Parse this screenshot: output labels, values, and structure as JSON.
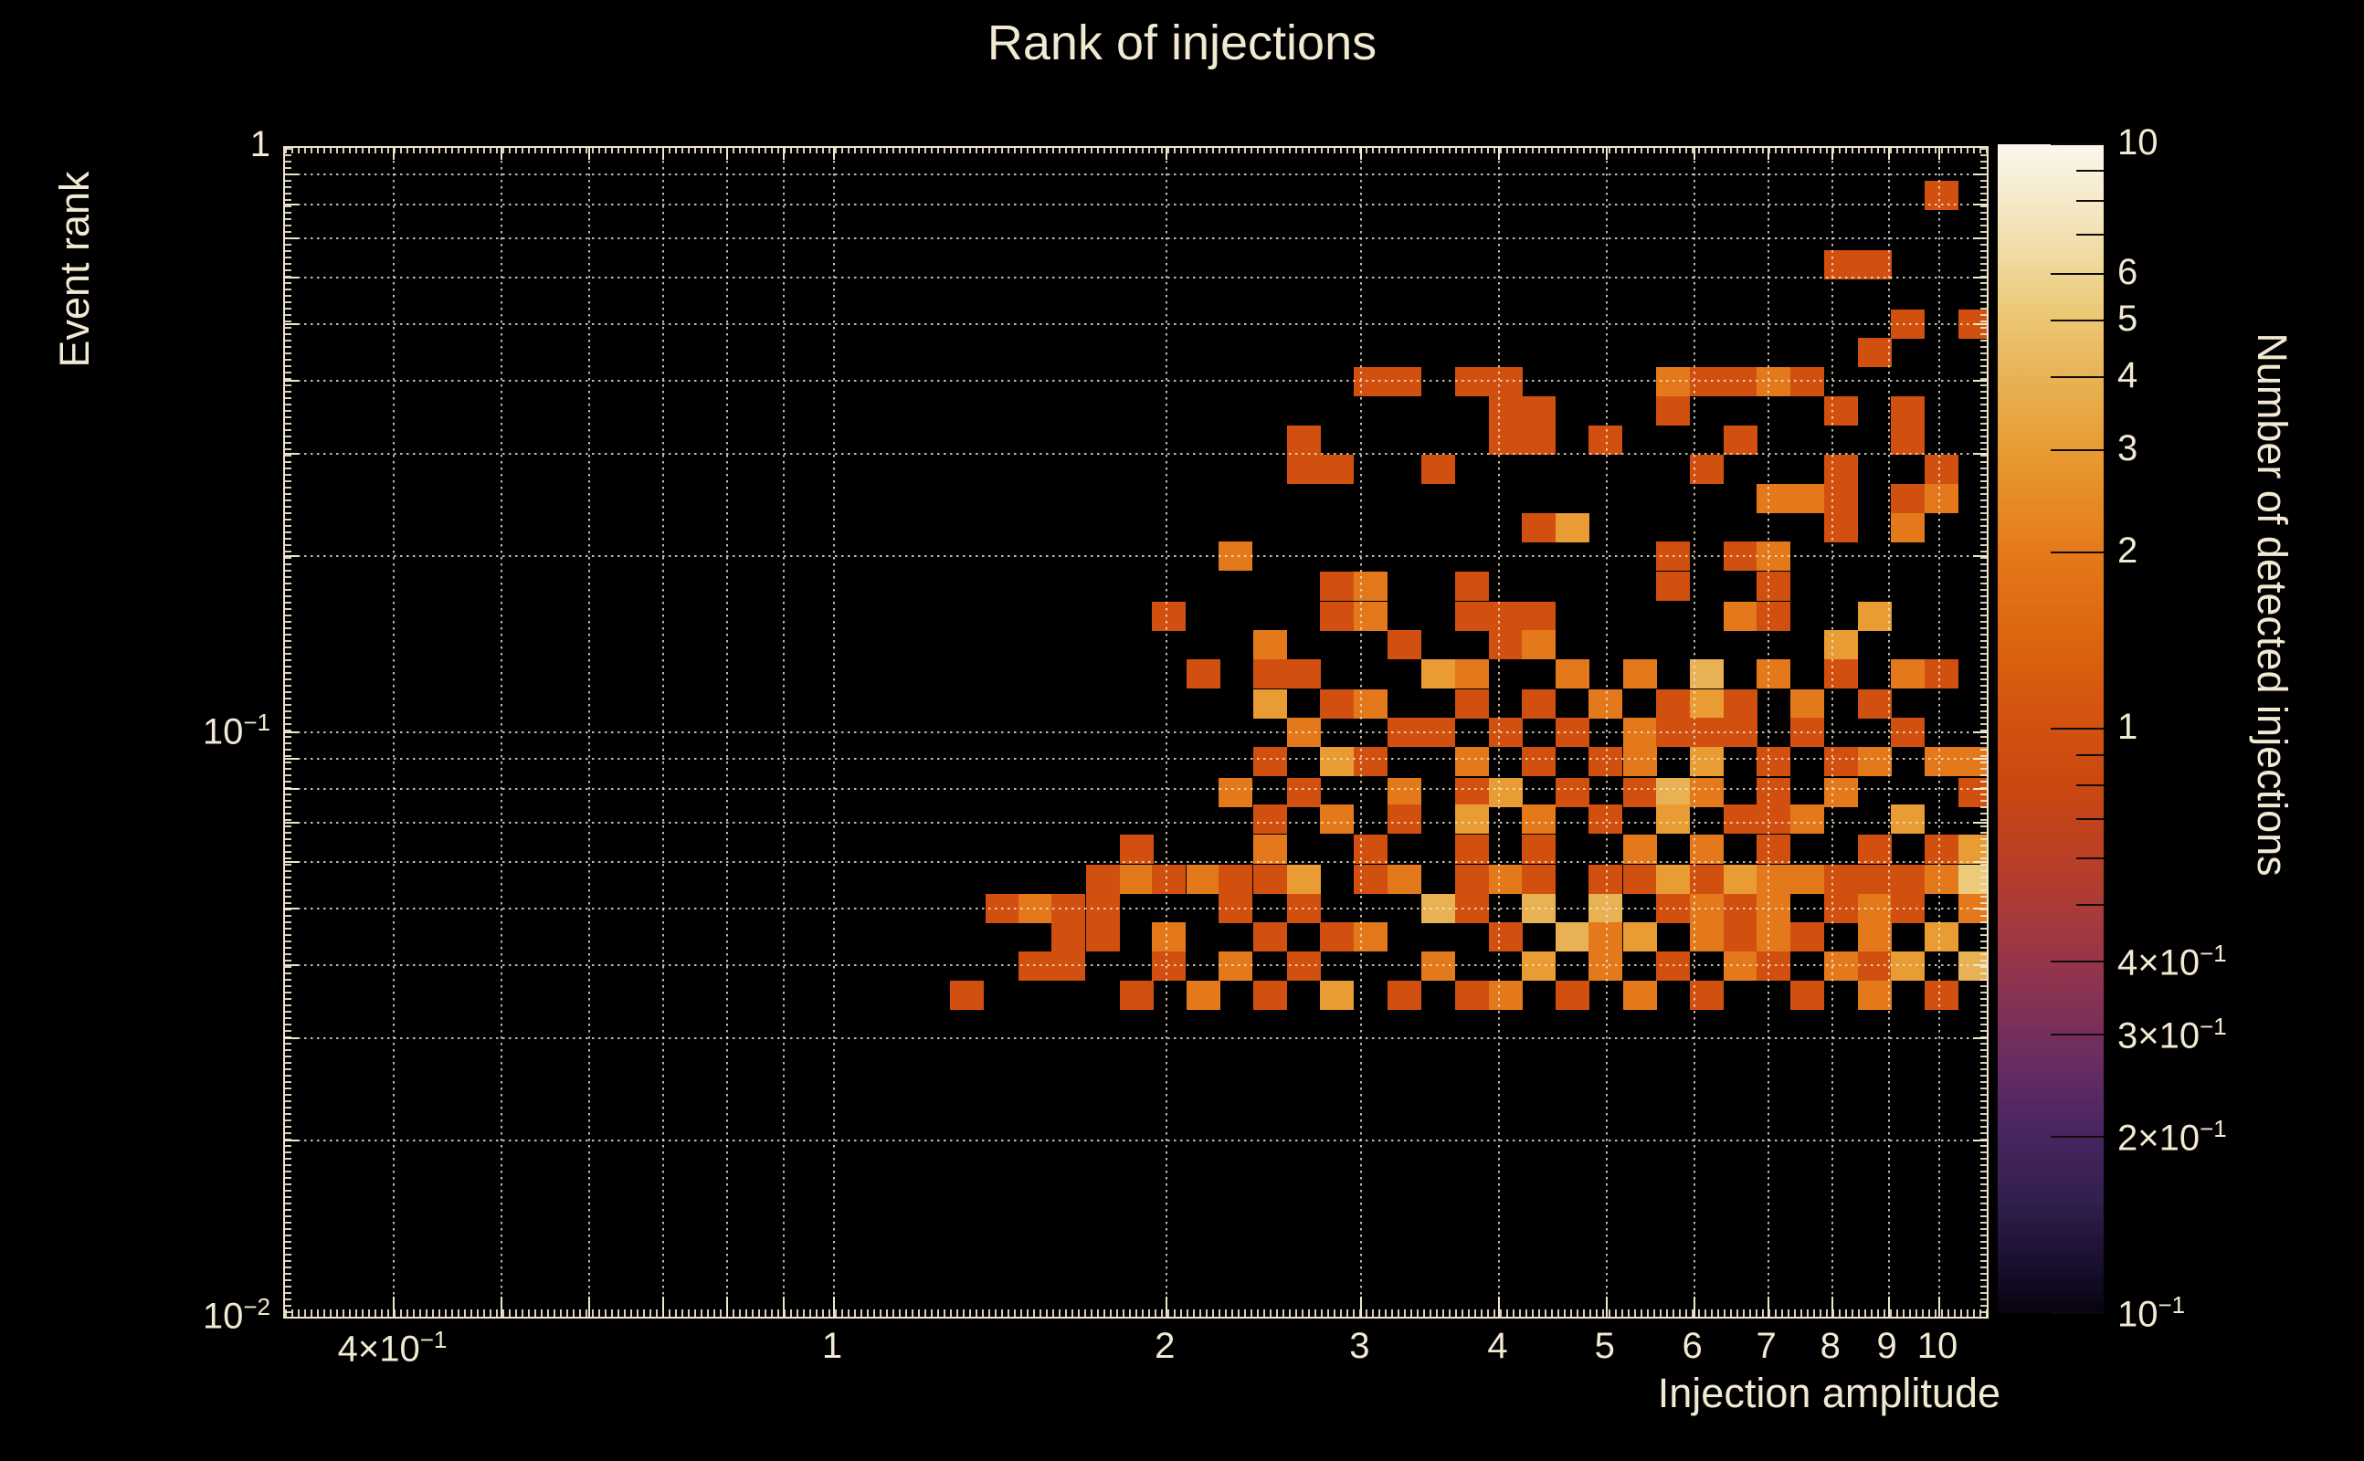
{
  "title": "Rank of injections",
  "colors": {
    "background": "#000000",
    "text": "#f2e9d2",
    "frame": "#efe6cd",
    "grid_dots": "rgba(242,233,210,0.8)",
    "value_colors": {
      "1": "#d2500f",
      "2": "#e4791b",
      "3": "#e89c33",
      "4": "#e8b254",
      "5": "#ecca79",
      "6": "#f0dfa6"
    },
    "colorbar_stops": [
      [
        "0%",
        "#070310"
      ],
      [
        "5%",
        "#1c1134"
      ],
      [
        "10%",
        "#33204f"
      ],
      [
        "16%",
        "#4b2663"
      ],
      [
        "22%",
        "#6b2d60"
      ],
      [
        "28%",
        "#8c3350"
      ],
      [
        "34%",
        "#a83a3a"
      ],
      [
        "40%",
        "#bc4022"
      ],
      [
        "45%",
        "#ca480f"
      ],
      [
        "50%",
        "#d2500f"
      ],
      [
        "58%",
        "#dc660f"
      ],
      [
        "65%",
        "#e4791b"
      ],
      [
        "74%",
        "#e89c33"
      ],
      [
        "80%",
        "#e8b254"
      ],
      [
        "86%",
        "#ecca79"
      ],
      [
        "90%",
        "#efd99e"
      ],
      [
        "95%",
        "#f5e9c8"
      ],
      [
        "100%",
        "#fbf7ee"
      ]
    ]
  },
  "chart_data": {
    "type": "heatmap",
    "title": "Rank of injections",
    "xlabel": "Injection amplitude",
    "ylabel": "Event rank",
    "zlabel": "Number of detected injections",
    "x_scale": "log",
    "y_scale": "log",
    "z_scale": "log",
    "xlim": [
      0.319,
      11.0
    ],
    "ylim": [
      0.01,
      1.0
    ],
    "zlim": [
      0.1,
      10
    ],
    "grid": "dotted, all log subdivisions, drawn over cells",
    "legend_position": "right colorbar",
    "x_ticks": [
      {
        "v": 0.4,
        "t": "4×10",
        "s": "−1"
      },
      {
        "v": 1,
        "t": "1"
      },
      {
        "v": 2,
        "t": "2"
      },
      {
        "v": 3,
        "t": "3"
      },
      {
        "v": 4,
        "t": "4"
      },
      {
        "v": 5,
        "t": "5"
      },
      {
        "v": 6,
        "t": "6"
      },
      {
        "v": 7,
        "t": "7"
      },
      {
        "v": 8,
        "t": "8"
      },
      {
        "v": 9,
        "t": "9"
      },
      {
        "v": 10,
        "t": "10"
      }
    ],
    "y_ticks": [
      {
        "v": 1,
        "t": "1"
      },
      {
        "v": 0.1,
        "t": "10",
        "s": "−1"
      },
      {
        "v": 0.01,
        "t": "10",
        "s": "−2"
      }
    ],
    "x_gridlines": [
      0.4,
      0.5,
      0.6,
      0.7,
      0.8,
      0.9,
      1,
      2,
      3,
      4,
      5,
      6,
      7,
      8,
      9,
      10
    ],
    "y_gridlines": [
      0.9,
      0.8,
      0.7,
      0.6,
      0.5,
      0.4,
      0.3,
      0.2,
      0.1,
      0.09,
      0.08,
      0.07,
      0.06,
      0.05,
      0.04,
      0.03,
      0.02
    ],
    "colorbar_ticks": [
      {
        "v": 10,
        "t": "10"
      },
      {
        "v": 6,
        "t": "6"
      },
      {
        "v": 5,
        "t": "5"
      },
      {
        "v": 4,
        "t": "4"
      },
      {
        "v": 3,
        "t": "3"
      },
      {
        "v": 2,
        "t": "2"
      },
      {
        "v": 1,
        "t": "1"
      },
      {
        "v": 0.4,
        "t": "4×10",
        "s": "−1"
      },
      {
        "v": 0.3,
        "t": "3×10",
        "s": "−1"
      },
      {
        "v": 0.2,
        "t": "2×10",
        "s": "−1"
      },
      {
        "v": 0.1,
        "t": "10",
        "s": "−1"
      }
    ],
    "colorbar_minor_ticks": [
      9,
      8,
      7,
      0.9,
      0.8,
      0.7,
      0.6,
      0.5
    ],
    "cell_size_decades": {
      "x": 0.0303,
      "y": 0.05
    },
    "cells": [
      [
        10.05,
        0.83,
        1
      ],
      [
        8.15,
        0.63,
        1
      ],
      [
        8.74,
        0.63,
        1
      ],
      [
        9.37,
        0.5,
        1
      ],
      [
        10.78,
        0.5,
        1
      ],
      [
        8.74,
        0.447,
        1
      ],
      [
        3.06,
        0.398,
        1
      ],
      [
        3.28,
        0.398,
        1
      ],
      [
        3.78,
        0.398,
        1
      ],
      [
        4.05,
        0.398,
        1
      ],
      [
        5.74,
        0.398,
        2
      ],
      [
        6.16,
        0.398,
        1
      ],
      [
        6.61,
        0.398,
        1
      ],
      [
        7.08,
        0.398,
        2
      ],
      [
        7.6,
        0.398,
        1
      ],
      [
        4.05,
        0.355,
        1
      ],
      [
        4.34,
        0.355,
        1
      ],
      [
        5.74,
        0.355,
        1
      ],
      [
        8.15,
        0.355,
        1
      ],
      [
        9.37,
        0.355,
        1
      ],
      [
        2.66,
        0.316,
        1
      ],
      [
        4.05,
        0.316,
        1
      ],
      [
        4.34,
        0.316,
        1
      ],
      [
        4.99,
        0.316,
        1
      ],
      [
        6.61,
        0.316,
        1
      ],
      [
        9.37,
        0.316,
        1
      ],
      [
        2.66,
        0.282,
        1
      ],
      [
        2.85,
        0.282,
        1
      ],
      [
        3.52,
        0.282,
        1
      ],
      [
        6.16,
        0.282,
        1
      ],
      [
        8.15,
        0.282,
        1
      ],
      [
        10.05,
        0.282,
        1
      ],
      [
        7.08,
        0.251,
        2
      ],
      [
        7.6,
        0.251,
        2
      ],
      [
        8.15,
        0.251,
        1
      ],
      [
        9.37,
        0.251,
        1
      ],
      [
        10.05,
        0.251,
        2
      ],
      [
        4.34,
        0.224,
        1
      ],
      [
        4.66,
        0.224,
        3
      ],
      [
        8.15,
        0.224,
        1
      ],
      [
        9.37,
        0.224,
        2
      ],
      [
        2.31,
        0.2,
        2
      ],
      [
        5.74,
        0.2,
        1
      ],
      [
        6.61,
        0.2,
        1
      ],
      [
        7.08,
        0.2,
        2
      ],
      [
        2.85,
        0.178,
        1
      ],
      [
        3.06,
        0.178,
        2
      ],
      [
        3.78,
        0.178,
        1
      ],
      [
        5.74,
        0.178,
        1
      ],
      [
        7.08,
        0.178,
        1
      ],
      [
        2.01,
        0.158,
        1
      ],
      [
        2.85,
        0.158,
        1
      ],
      [
        3.06,
        0.158,
        2
      ],
      [
        3.78,
        0.158,
        1
      ],
      [
        4.05,
        0.158,
        1
      ],
      [
        4.34,
        0.158,
        1
      ],
      [
        6.61,
        0.158,
        2
      ],
      [
        7.08,
        0.158,
        1
      ],
      [
        8.74,
        0.158,
        3
      ],
      [
        2.48,
        0.141,
        2
      ],
      [
        3.28,
        0.141,
        1
      ],
      [
        4.05,
        0.141,
        1
      ],
      [
        4.34,
        0.141,
        2
      ],
      [
        8.15,
        0.141,
        3
      ],
      [
        2.16,
        0.126,
        1
      ],
      [
        2.48,
        0.126,
        1
      ],
      [
        2.66,
        0.126,
        1
      ],
      [
        3.52,
        0.126,
        3
      ],
      [
        3.78,
        0.126,
        2
      ],
      [
        4.66,
        0.126,
        2
      ],
      [
        5.36,
        0.126,
        2
      ],
      [
        6.16,
        0.126,
        4
      ],
      [
        7.08,
        0.126,
        2
      ],
      [
        8.15,
        0.126,
        1
      ],
      [
        9.37,
        0.126,
        2
      ],
      [
        10.05,
        0.126,
        1
      ],
      [
        2.48,
        0.112,
        3
      ],
      [
        2.85,
        0.112,
        1
      ],
      [
        3.06,
        0.112,
        2
      ],
      [
        3.78,
        0.112,
        1
      ],
      [
        4.34,
        0.112,
        1
      ],
      [
        4.99,
        0.112,
        2
      ],
      [
        5.74,
        0.112,
        1
      ],
      [
        6.16,
        0.112,
        3
      ],
      [
        6.61,
        0.112,
        1
      ],
      [
        7.6,
        0.112,
        2
      ],
      [
        8.74,
        0.112,
        1
      ],
      [
        2.66,
        0.1,
        2
      ],
      [
        3.28,
        0.1,
        1
      ],
      [
        3.52,
        0.1,
        1
      ],
      [
        4.05,
        0.1,
        1
      ],
      [
        4.66,
        0.1,
        1
      ],
      [
        5.36,
        0.1,
        2
      ],
      [
        5.74,
        0.1,
        1
      ],
      [
        6.16,
        0.1,
        1
      ],
      [
        6.61,
        0.1,
        1
      ],
      [
        7.6,
        0.1,
        1
      ],
      [
        9.37,
        0.1,
        1
      ],
      [
        2.48,
        0.089,
        1
      ],
      [
        2.85,
        0.089,
        3
      ],
      [
        3.06,
        0.089,
        1
      ],
      [
        3.78,
        0.089,
        2
      ],
      [
        4.34,
        0.089,
        1
      ],
      [
        4.99,
        0.089,
        1
      ],
      [
        5.36,
        0.089,
        2
      ],
      [
        6.16,
        0.089,
        3
      ],
      [
        7.08,
        0.089,
        1
      ],
      [
        8.15,
        0.089,
        1
      ],
      [
        8.74,
        0.089,
        2
      ],
      [
        10.05,
        0.089,
        2
      ],
      [
        10.78,
        0.089,
        2
      ],
      [
        2.31,
        0.079,
        2
      ],
      [
        2.66,
        0.079,
        1
      ],
      [
        3.28,
        0.079,
        2
      ],
      [
        3.78,
        0.079,
        1
      ],
      [
        4.05,
        0.079,
        3
      ],
      [
        4.66,
        0.079,
        1
      ],
      [
        5.36,
        0.079,
        1
      ],
      [
        5.74,
        0.079,
        4
      ],
      [
        6.16,
        0.079,
        2
      ],
      [
        7.08,
        0.079,
        1
      ],
      [
        8.15,
        0.079,
        2
      ],
      [
        10.78,
        0.079,
        1
      ],
      [
        2.48,
        0.071,
        1
      ],
      [
        2.85,
        0.071,
        2
      ],
      [
        3.28,
        0.071,
        1
      ],
      [
        3.78,
        0.071,
        3
      ],
      [
        4.34,
        0.071,
        2
      ],
      [
        4.99,
        0.071,
        1
      ],
      [
        5.74,
        0.071,
        3
      ],
      [
        6.61,
        0.071,
        1
      ],
      [
        7.08,
        0.071,
        1
      ],
      [
        7.6,
        0.071,
        2
      ],
      [
        9.37,
        0.071,
        3
      ],
      [
        1.88,
        0.063,
        1
      ],
      [
        2.48,
        0.063,
        2
      ],
      [
        3.06,
        0.063,
        1
      ],
      [
        3.78,
        0.063,
        1
      ],
      [
        4.34,
        0.063,
        1
      ],
      [
        5.36,
        0.063,
        2
      ],
      [
        6.16,
        0.063,
        2
      ],
      [
        7.08,
        0.063,
        1
      ],
      [
        8.74,
        0.063,
        1
      ],
      [
        10.05,
        0.063,
        1
      ],
      [
        10.78,
        0.063,
        3
      ],
      [
        1.75,
        0.056,
        1
      ],
      [
        1.88,
        0.056,
        2
      ],
      [
        2.01,
        0.056,
        1
      ],
      [
        2.16,
        0.056,
        2
      ],
      [
        2.31,
        0.056,
        1
      ],
      [
        2.48,
        0.056,
        1
      ],
      [
        2.66,
        0.056,
        3
      ],
      [
        3.06,
        0.056,
        1
      ],
      [
        3.28,
        0.056,
        2
      ],
      [
        3.78,
        0.056,
        1
      ],
      [
        4.05,
        0.056,
        2
      ],
      [
        4.34,
        0.056,
        1
      ],
      [
        4.99,
        0.056,
        1
      ],
      [
        5.36,
        0.056,
        1
      ],
      [
        5.74,
        0.056,
        3
      ],
      [
        6.16,
        0.056,
        1
      ],
      [
        6.61,
        0.056,
        3
      ],
      [
        7.08,
        0.056,
        2
      ],
      [
        7.6,
        0.056,
        2
      ],
      [
        8.15,
        0.056,
        1
      ],
      [
        8.74,
        0.056,
        1
      ],
      [
        9.37,
        0.056,
        1
      ],
      [
        10.05,
        0.056,
        2
      ],
      [
        10.78,
        0.056,
        5
      ],
      [
        1.42,
        0.05,
        1
      ],
      [
        1.52,
        0.05,
        2
      ],
      [
        1.63,
        0.05,
        1
      ],
      [
        1.75,
        0.05,
        1
      ],
      [
        2.31,
        0.05,
        1
      ],
      [
        2.66,
        0.05,
        1
      ],
      [
        3.52,
        0.05,
        4
      ],
      [
        3.78,
        0.05,
        1
      ],
      [
        4.34,
        0.05,
        4
      ],
      [
        4.99,
        0.05,
        4
      ],
      [
        5.74,
        0.05,
        1
      ],
      [
        6.16,
        0.05,
        2
      ],
      [
        6.61,
        0.05,
        1
      ],
      [
        7.08,
        0.05,
        2
      ],
      [
        8.15,
        0.05,
        1
      ],
      [
        8.74,
        0.05,
        2
      ],
      [
        9.37,
        0.05,
        1
      ],
      [
        10.78,
        0.05,
        2
      ],
      [
        1.63,
        0.0447,
        1
      ],
      [
        1.75,
        0.0447,
        1
      ],
      [
        2.01,
        0.0447,
        2
      ],
      [
        2.48,
        0.0447,
        1
      ],
      [
        2.85,
        0.0447,
        1
      ],
      [
        3.06,
        0.0447,
        2
      ],
      [
        4.05,
        0.0447,
        1
      ],
      [
        4.66,
        0.0447,
        4
      ],
      [
        4.99,
        0.0447,
        2
      ],
      [
        5.36,
        0.0447,
        3
      ],
      [
        6.16,
        0.0447,
        2
      ],
      [
        6.61,
        0.0447,
        1
      ],
      [
        7.08,
        0.0447,
        2
      ],
      [
        7.6,
        0.0447,
        1
      ],
      [
        8.74,
        0.0447,
        2
      ],
      [
        10.05,
        0.0447,
        3
      ],
      [
        1.52,
        0.0398,
        1
      ],
      [
        1.63,
        0.0398,
        1
      ],
      [
        2.01,
        0.0398,
        1
      ],
      [
        2.31,
        0.0398,
        2
      ],
      [
        2.66,
        0.0398,
        1
      ],
      [
        3.52,
        0.0398,
        2
      ],
      [
        4.34,
        0.0398,
        3
      ],
      [
        4.99,
        0.0398,
        2
      ],
      [
        5.74,
        0.0398,
        1
      ],
      [
        6.61,
        0.0398,
        2
      ],
      [
        7.08,
        0.0398,
        1
      ],
      [
        8.15,
        0.0398,
        2
      ],
      [
        8.74,
        0.0398,
        1
      ],
      [
        9.37,
        0.0398,
        3
      ],
      [
        10.78,
        0.0398,
        4
      ],
      [
        1.32,
        0.0355,
        1
      ],
      [
        1.88,
        0.0355,
        1
      ],
      [
        2.16,
        0.0355,
        2
      ],
      [
        2.48,
        0.0355,
        1
      ],
      [
        2.85,
        0.0355,
        3
      ],
      [
        3.28,
        0.0355,
        1
      ],
      [
        3.78,
        0.0355,
        1
      ],
      [
        4.05,
        0.0355,
        2
      ],
      [
        4.66,
        0.0355,
        1
      ],
      [
        5.36,
        0.0355,
        2
      ],
      [
        6.16,
        0.0355,
        1
      ],
      [
        7.6,
        0.0355,
        1
      ],
      [
        8.74,
        0.0355,
        2
      ],
      [
        10.05,
        0.0355,
        1
      ]
    ]
  }
}
